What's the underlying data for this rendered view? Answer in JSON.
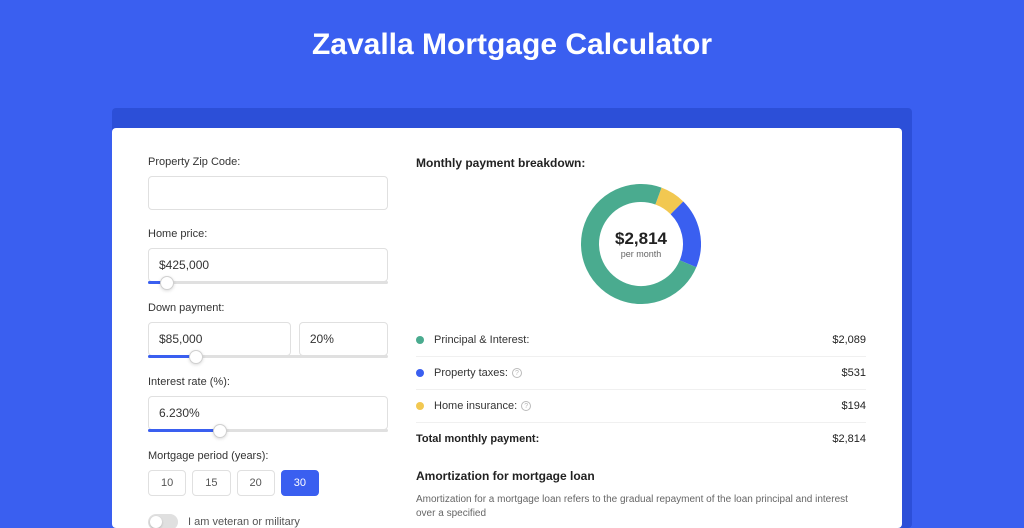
{
  "page": {
    "title": "Zavalla Mortgage Calculator",
    "background_color": "#3a5ff0",
    "shadow_color": "#2c4fd8",
    "card_color": "#ffffff"
  },
  "form": {
    "zip": {
      "label": "Property Zip Code:",
      "value": ""
    },
    "home_price": {
      "label": "Home price:",
      "value": "$425,000",
      "slider_pct": 8
    },
    "down_payment": {
      "label": "Down payment:",
      "value": "$85,000",
      "pct_value": "20%",
      "slider_pct": 20
    },
    "interest_rate": {
      "label": "Interest rate (%):",
      "value": "6.230%",
      "slider_pct": 30
    },
    "mortgage_period": {
      "label": "Mortgage period (years):",
      "options": [
        "10",
        "15",
        "20",
        "30"
      ],
      "active_index": 3
    },
    "veteran": {
      "label": "I am veteran or military",
      "checked": false
    }
  },
  "breakdown": {
    "title": "Monthly payment breakdown:",
    "center_value": "$2,814",
    "center_sub": "per month",
    "donut": {
      "segments": [
        {
          "name": "principal_interest",
          "value": 2089,
          "color": "#4aab8f"
        },
        {
          "name": "property_taxes",
          "value": 531,
          "color": "#3a5ff0"
        },
        {
          "name": "home_insurance",
          "value": 194,
          "color": "#f2c851"
        }
      ],
      "ring_width": 18,
      "radius": 60
    },
    "rows": [
      {
        "label": "Principal & Interest:",
        "value": "$2,089",
        "color": "#4aab8f",
        "info": false
      },
      {
        "label": "Property taxes:",
        "value": "$531",
        "color": "#3a5ff0",
        "info": true
      },
      {
        "label": "Home insurance:",
        "value": "$194",
        "color": "#f2c851",
        "info": true
      }
    ],
    "total": {
      "label": "Total monthly payment:",
      "value": "$2,814"
    }
  },
  "amortization": {
    "title": "Amortization for mortgage loan",
    "text": "Amortization for a mortgage loan refers to the gradual repayment of the loan principal and interest over a specified"
  }
}
